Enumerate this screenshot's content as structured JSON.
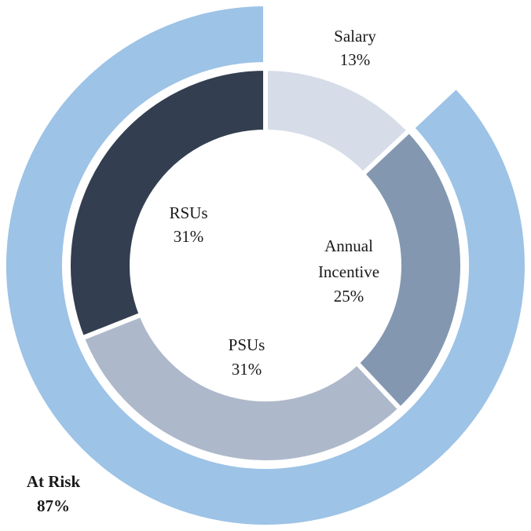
{
  "chart_data": {
    "type": "pie",
    "subtype": "nested-donut",
    "inner_ring": {
      "slices": [
        {
          "name": "Salary",
          "value": 13,
          "label": "13%",
          "color": "#d6dde8"
        },
        {
          "name": "Annual Incentive",
          "value": 25,
          "label": "25%",
          "color": "#8497b0"
        },
        {
          "name": "PSUs",
          "value": 31,
          "label": "31%",
          "color": "#adb9ca"
        },
        {
          "name": "RSUs",
          "value": 31,
          "label": "31%",
          "color": "#333f50"
        }
      ]
    },
    "outer_ring": {
      "slices": [
        {
          "name": "Salary",
          "value": 13,
          "color": "#ffffff"
        },
        {
          "name": "At Risk",
          "value": 87,
          "label": "87%",
          "color": "#9dc3e6"
        }
      ]
    },
    "start_angle_deg": 0,
    "direction": "clockwise"
  }
}
